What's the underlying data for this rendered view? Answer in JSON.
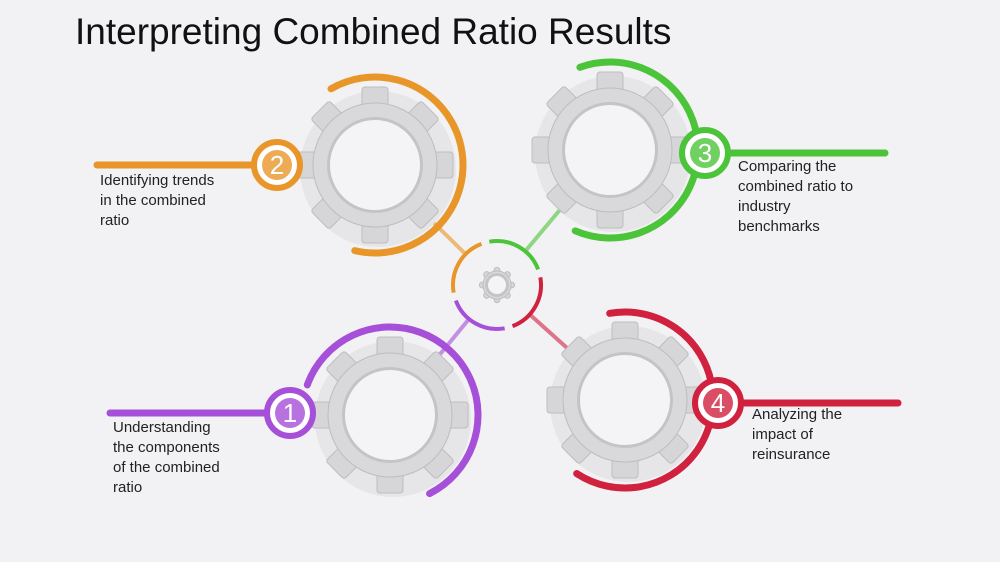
{
  "title": "Interpreting Combined Ratio Results",
  "steps": [
    {
      "number": "1",
      "lines": [
        "Understanding",
        "the components",
        "of the combined",
        "ratio"
      ]
    },
    {
      "number": "2",
      "lines": [
        "Identifying trends",
        "in the combined",
        "ratio"
      ]
    },
    {
      "number": "3",
      "lines": [
        "Comparing the",
        "combined ratio to",
        "industry",
        "benchmarks"
      ]
    },
    {
      "number": "4",
      "lines": [
        "Analyzing the",
        "impact of",
        "reinsurance"
      ]
    }
  ]
}
